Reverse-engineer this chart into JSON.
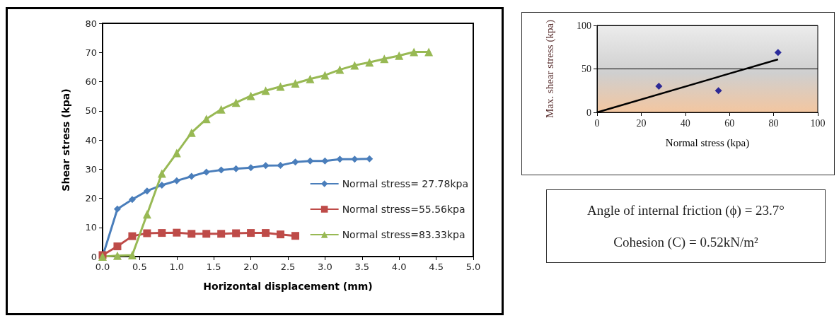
{
  "chart_data": [
    {
      "type": "line",
      "xlabel": "Horizontal displacement (mm)",
      "ylabel": "Shear stress (kpa)",
      "xlim": [
        0,
        5
      ],
      "xticks": [
        {
          "value": 0,
          "label": "0.0"
        },
        {
          "value": 0.5,
          "label": "0.5"
        },
        {
          "value": 1,
          "label": "1.0"
        },
        {
          "value": 1.5,
          "label": "1.5"
        },
        {
          "value": 2,
          "label": "2.0"
        },
        {
          "value": 2.5,
          "label": "2.5"
        },
        {
          "value": 3,
          "label": "3.0"
        },
        {
          "value": 3.5,
          "label": "3.5"
        },
        {
          "value": 4,
          "label": "4.0"
        },
        {
          "value": 4.5,
          "label": "4.5"
        },
        {
          "value": 5,
          "label": "5.0"
        }
      ],
      "ylim": [
        0,
        80
      ],
      "yticks": [
        0,
        10,
        20,
        30,
        40,
        50,
        60,
        70,
        80
      ],
      "grid": false,
      "legend": "right",
      "series": [
        {
          "name": "Normal stress= 27.78kpa",
          "color": "#4a7ebb",
          "marker": "diamond",
          "x": [
            0,
            0.2,
            0.4,
            0.6,
            0.8,
            1.0,
            1.2,
            1.4,
            1.6,
            1.8,
            2.0,
            2.2,
            2.4,
            2.6,
            2.8,
            3.0,
            3.2,
            3.4,
            3.6
          ],
          "values": [
            0,
            16.3,
            19.6,
            22.5,
            24.5,
            26,
            27.5,
            29,
            29.7,
            30.1,
            30.5,
            31.2,
            31.3,
            32.4,
            32.8,
            32.8,
            33.4,
            33.4,
            33.5
          ]
        },
        {
          "name": "Normal stress=55.56kpa",
          "color": "#be4b48",
          "marker": "square",
          "x": [
            0,
            0.2,
            0.4,
            0.6,
            0.8,
            1.0,
            1.2,
            1.4,
            1.6,
            1.8,
            2.0,
            2.2,
            2.4,
            2.6
          ],
          "values": [
            0.5,
            3.5,
            7,
            8,
            8.1,
            8.2,
            7.8,
            7.8,
            7.8,
            8,
            8.1,
            8.1,
            7.6,
            7.1
          ]
        },
        {
          "name": "Normal stress=83.33kpa",
          "color": "#98b954",
          "marker": "triangle",
          "x": [
            0,
            0.2,
            0.4,
            0.6,
            0.8,
            1.0,
            1.2,
            1.4,
            1.6,
            1.8,
            2.0,
            2.2,
            2.4,
            2.6,
            2.8,
            3.0,
            3.2,
            3.4,
            3.6,
            3.8,
            4.0,
            4.2,
            4.4
          ],
          "values": [
            0,
            0.3,
            0.5,
            14.5,
            28.5,
            35.5,
            42.5,
            47.2,
            50.5,
            52.8,
            55.1,
            56.9,
            58.3,
            59.4,
            60.9,
            62.2,
            64.1,
            65.6,
            66.6,
            67.8,
            68.9,
            70.2,
            70.2
          ]
        }
      ]
    },
    {
      "type": "scatter",
      "xlabel": "Normal stress (kpa)",
      "ylabel": "Max. shear stress (kpa)",
      "xlim": [
        0,
        100
      ],
      "xticks": [
        0,
        20,
        40,
        60,
        80,
        100
      ],
      "ylim": [
        0,
        100
      ],
      "yticks": [
        0,
        50,
        100
      ],
      "grid": "y",
      "series": [
        {
          "color": "#00008b",
          "marker": "diamond",
          "x": [
            28,
            55,
            82
          ],
          "values": [
            30,
            25,
            69
          ]
        },
        {
          "type": "line",
          "color": "#000000",
          "marker": "none",
          "x": [
            0,
            82
          ],
          "values": [
            0,
            61
          ]
        }
      ]
    },
    {
      "type": "other",
      "annotations": [
        "Angle of internal friction (ϕ) = 23.7°",
        "Cohesion (C) = 0.52kN/m²"
      ]
    }
  ]
}
